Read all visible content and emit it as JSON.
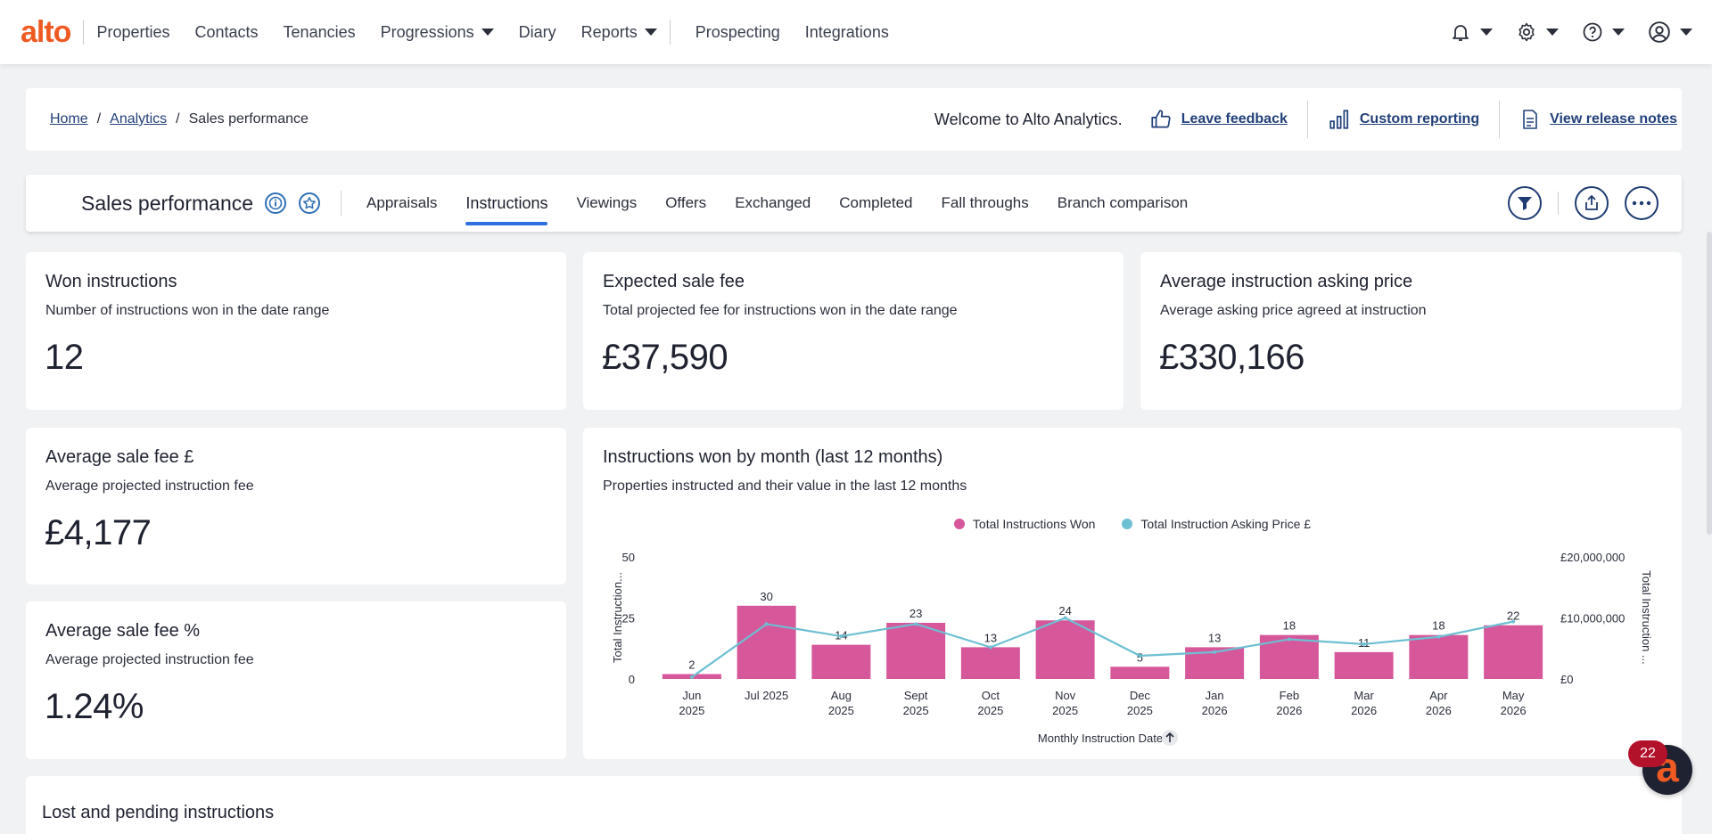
{
  "nav": {
    "logo": "alto",
    "items": [
      {
        "label": "Properties",
        "dropdown": false
      },
      {
        "label": "Contacts",
        "dropdown": false
      },
      {
        "label": "Tenancies",
        "dropdown": false
      },
      {
        "label": "Progressions",
        "dropdown": true
      },
      {
        "label": "Diary",
        "dropdown": false
      },
      {
        "label": "Reports",
        "dropdown": true
      }
    ],
    "items_after_sep": [
      {
        "label": "Prospecting"
      },
      {
        "label": "Integrations"
      }
    ],
    "right_icons": [
      "bell-icon",
      "gear-icon",
      "help-icon",
      "user-icon"
    ]
  },
  "breadcrumb": {
    "home": "Home",
    "analytics": "Analytics",
    "current": "Sales performance",
    "welcome": "Welcome to Alto Analytics.",
    "leave_feedback": "Leave feedback",
    "custom_reporting": "Custom reporting",
    "release_notes": "View release notes"
  },
  "tabs": {
    "title": "Sales performance",
    "items": [
      "Appraisals",
      "Instructions",
      "Viewings",
      "Offers",
      "Exchanged",
      "Completed",
      "Fall throughs",
      "Branch comparison"
    ],
    "active": "Instructions"
  },
  "cards": {
    "won": {
      "title": "Won instructions",
      "subtitle": "Number of instructions won in the date range",
      "value": "12"
    },
    "expected_fee": {
      "title": "Expected sale fee",
      "subtitle": "Total projected fee for instructions won in the date range",
      "value": "£37,590"
    },
    "avg_price": {
      "title": "Average instruction asking price",
      "subtitle": "Average asking price agreed at instruction",
      "value": "£330,166"
    },
    "avg_fee": {
      "title": "Average sale fee £",
      "subtitle": "Average projected instruction fee",
      "value": "£4,177"
    },
    "avg_fee_pct": {
      "title": "Average sale fee %",
      "subtitle": "Average projected instruction fee",
      "value": "1.24%"
    },
    "chart": {
      "title": "Instructions won by month (last 12 months)",
      "subtitle": "Properties instructed and their value in the last 12 months"
    },
    "lost": {
      "title": "Lost and pending instructions"
    }
  },
  "chat": {
    "badge": "22",
    "letter": "a"
  },
  "colors": {
    "brand": "#ef5a23",
    "bar": "#d6579a",
    "line": "#6dbfd2",
    "link": "#22407a",
    "tab_active": "#2f6fe0"
  },
  "chart_data": {
    "type": "bar",
    "categories": [
      [
        "Jun",
        "2025"
      ],
      [
        "Jul 2025",
        ""
      ],
      [
        "Aug",
        "2025"
      ],
      [
        "Sept",
        "2025"
      ],
      [
        "Oct",
        "2025"
      ],
      [
        "Nov",
        "2025"
      ],
      [
        "Dec",
        "2025"
      ],
      [
        "Jan",
        "2026"
      ],
      [
        "Feb",
        "2026"
      ],
      [
        "Mar",
        "2026"
      ],
      [
        "Apr",
        "2026"
      ],
      [
        "May",
        "2026"
      ]
    ],
    "series": [
      {
        "name": "Total Instructions Won",
        "type": "bar",
        "values": [
          2,
          30,
          14,
          23,
          13,
          24,
          5,
          13,
          18,
          11,
          18,
          22
        ]
      },
      {
        "name": "Total Instruction Asking Price £",
        "type": "line",
        "values": [
          300000,
          9000000,
          7000000,
          9000000,
          5200000,
          10000000,
          3800000,
          4400000,
          6500000,
          5700000,
          6900000,
          9400000
        ]
      }
    ],
    "ylabel": "Total Instruction...",
    "y2label": "Total Instruction ...",
    "xlabel": "Monthly Instruction Date",
    "ylim": [
      0,
      50
    ],
    "y2lim": [
      0,
      20000000
    ],
    "yticks": [
      "0",
      "25",
      "50"
    ],
    "y2ticks": [
      "£0",
      "£10,000,000",
      "£20,000,000"
    ]
  }
}
